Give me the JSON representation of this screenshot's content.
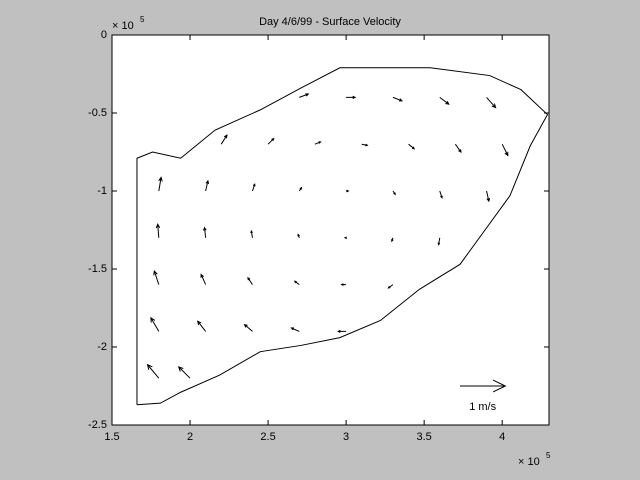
{
  "chart_data": {
    "type": "quiver",
    "title": "Day 4/6/99 - Surface Velocity",
    "background": "#c0c0c0",
    "color": "#000000",
    "xlim": [
      1.5,
      4.3
    ],
    "ylim": [
      -2.5,
      0
    ],
    "xticks": [
      1.5,
      2,
      2.5,
      3,
      3.5,
      4
    ],
    "yticks": [
      0,
      -0.5,
      -1,
      -1.5,
      -2,
      -2.5
    ],
    "x_multiplier": {
      "base": "× 10",
      "exponent": 5
    },
    "y_multiplier": {
      "base": "× 10",
      "exponent": 5
    },
    "boundary": {
      "x": [
        1.66,
        1.66,
        1.76,
        1.94,
        2.16,
        2.45,
        2.71,
        2.96,
        3.22,
        3.54,
        3.92,
        4.12,
        4.29,
        4.18,
        4.05,
        3.89,
        3.73,
        3.47,
        3.22,
        2.96,
        2.71,
        2.45,
        2.19,
        1.94,
        1.81,
        1.66
      ],
      "y": [
        -2.37,
        -0.79,
        -0.75,
        -0.79,
        -0.61,
        -0.48,
        -0.34,
        -0.21,
        -0.21,
        -0.21,
        -0.26,
        -0.35,
        -0.51,
        -0.71,
        -1.03,
        -1.25,
        -1.47,
        -1.63,
        -1.83,
        -1.94,
        -1.99,
        -2.03,
        -2.18,
        -2.29,
        -2.36,
        -2.37
      ]
    },
    "x": [
      2.7,
      3.0,
      3.3,
      3.6,
      3.9,
      2.2,
      2.5,
      2.8,
      3.1,
      3.4,
      3.7,
      4.0,
      1.8,
      2.1,
      2.4,
      2.7,
      3.0,
      3.3,
      3.6,
      3.9,
      1.8,
      2.1,
      2.4,
      2.7,
      3.0,
      3.3,
      3.6,
      1.8,
      2.1,
      2.4,
      2.7,
      3.0,
      3.3,
      1.8,
      2.1,
      2.4,
      2.7,
      3.0,
      1.8,
      2.0
    ],
    "y": [
      -0.4,
      -0.4,
      -0.4,
      -0.4,
      -0.4,
      -0.7,
      -0.7,
      -0.7,
      -0.7,
      -0.7,
      -0.7,
      -0.7,
      -1.0,
      -1.0,
      -1.0,
      -1.0,
      -1.0,
      -1.0,
      -1.0,
      -1.0,
      -1.3,
      -1.3,
      -1.3,
      -1.3,
      -1.3,
      -1.3,
      -1.3,
      -1.6,
      -1.6,
      -1.6,
      -1.6,
      -1.6,
      -1.6,
      -1.9,
      -1.9,
      -1.9,
      -1.9,
      -1.9,
      -2.2,
      -2.2
    ],
    "u": [
      0.2,
      0.2,
      0.2,
      0.2,
      0.2,
      0.125,
      0.125,
      0.125,
      0.125,
      0.125,
      0.125,
      0.125,
      0.05,
      0.05,
      0.05,
      0.05,
      0.05,
      0.05,
      0.05,
      0.05,
      -0.025,
      -0.025,
      -0.025,
      -0.025,
      -0.025,
      -0.025,
      -0.025,
      -0.1,
      -0.1,
      -0.1,
      -0.1,
      -0.1,
      -0.1,
      -0.175,
      -0.175,
      -0.175,
      -0.175,
      -0.175,
      -0.25,
      -0.25
    ],
    "v": [
      0.075,
      0,
      -0.075,
      -0.15,
      -0.225,
      0.2,
      0.125,
      0.05,
      -0.025,
      -0.1,
      -0.175,
      -0.25,
      0.3,
      0.225,
      0.15,
      0.075,
      0,
      -0.075,
      -0.15,
      -0.225,
      0.3,
      0.225,
      0.15,
      0.075,
      0,
      -0.075,
      -0.15,
      0.3,
      0.225,
      0.15,
      0.075,
      0,
      -0.075,
      0.3,
      0.225,
      0.15,
      0.075,
      0,
      0.3,
      0.25
    ],
    "arrow_scale": 0.29,
    "reference": {
      "x": 3.73,
      "y": -2.25,
      "u": 1,
      "label": "1 m/s"
    }
  }
}
